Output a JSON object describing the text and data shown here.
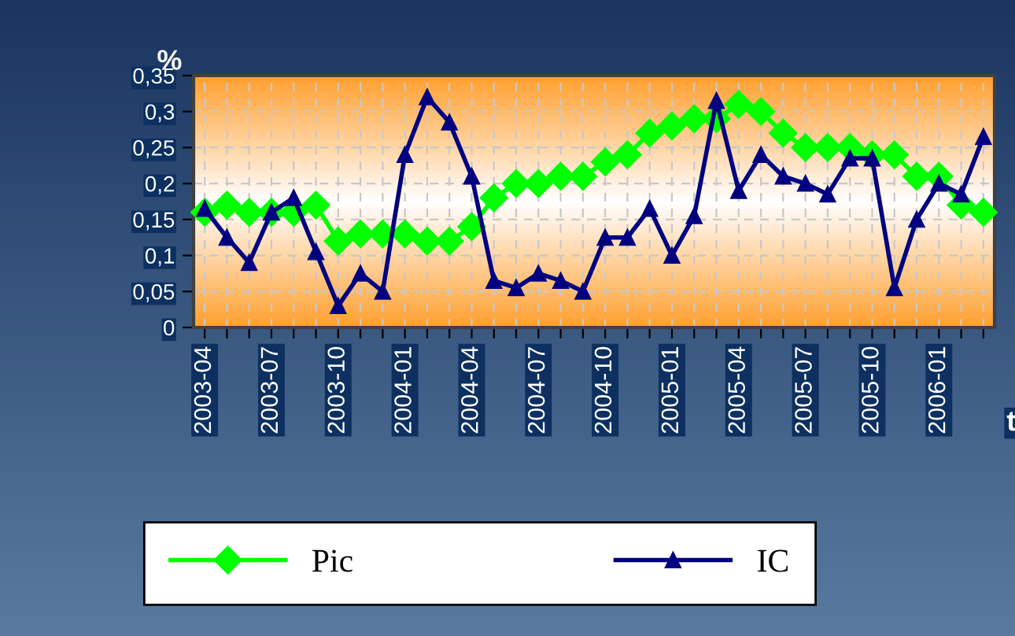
{
  "chart_data": {
    "type": "line",
    "xlabel": "t",
    "ylabel": "%",
    "categories": [
      "2003-04",
      null,
      null,
      "2003-07",
      null,
      null,
      "2003-10",
      null,
      null,
      "2004-01",
      null,
      null,
      "2004-04",
      null,
      null,
      "2004-07",
      null,
      null,
      "2004-10",
      null,
      null,
      "2005-01",
      null,
      null,
      "2005-04",
      null,
      null,
      "2005-07",
      null,
      null,
      "2005-10",
      null,
      null,
      "2006-01",
      null,
      null
    ],
    "series": [
      {
        "name": "Pic",
        "color": "#00ff00",
        "marker": "diamond",
        "values": [
          0.16,
          0.17,
          0.16,
          0.16,
          0.16,
          0.17,
          0.12,
          0.13,
          0.13,
          0.13,
          0.12,
          0.12,
          0.14,
          0.18,
          0.2,
          0.2,
          0.21,
          0.21,
          0.23,
          0.24,
          0.27,
          0.28,
          0.29,
          0.29,
          0.31,
          0.3,
          0.27,
          0.25,
          0.25,
          0.25,
          0.24,
          0.24,
          0.21,
          0.21,
          0.17,
          0.16
        ]
      },
      {
        "name": "IC",
        "color": "#000080",
        "marker": "triangle",
        "values": [
          0.165,
          0.125,
          0.09,
          0.16,
          0.18,
          0.105,
          0.03,
          0.075,
          0.05,
          0.24,
          0.32,
          0.285,
          0.21,
          0.065,
          0.055,
          0.075,
          0.065,
          0.05,
          0.125,
          0.125,
          0.165,
          0.1,
          0.155,
          0.315,
          0.19,
          0.24,
          0.21,
          0.2,
          0.185,
          0.235,
          0.235,
          0.055,
          0.15,
          0.2,
          0.185,
          0.265
        ]
      }
    ],
    "ylim": [
      0,
      0.35
    ],
    "yticks": [
      0,
      {
        "value": 0.05,
        "label": "0,05"
      },
      {
        "value": 0.1,
        "label": "0,1"
      },
      {
        "value": 0.15,
        "label": "0,15"
      },
      {
        "value": 0.2,
        "label": "0,2"
      },
      {
        "value": 0.25,
        "label": "0,25"
      },
      {
        "value": 0.3,
        "label": "0,3"
      },
      {
        "value": 0.35,
        "label": "0,35"
      }
    ],
    "grid": true,
    "legend": "bottom",
    "line_style": "solid"
  }
}
